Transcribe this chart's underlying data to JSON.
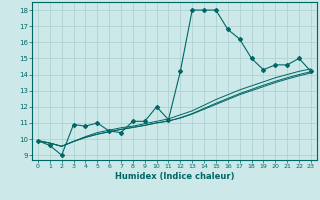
{
  "xlabel": "Humidex (Indice chaleur)",
  "xlim": [
    -0.5,
    23.5
  ],
  "ylim": [
    8.7,
    18.5
  ],
  "yticks": [
    9,
    10,
    11,
    12,
    13,
    14,
    15,
    16,
    17,
    18
  ],
  "xticks": [
    0,
    1,
    2,
    3,
    4,
    5,
    6,
    7,
    8,
    9,
    10,
    11,
    12,
    13,
    14,
    15,
    16,
    17,
    18,
    19,
    20,
    21,
    22,
    23
  ],
  "background_color": "#cce8e8",
  "grid_color": "#aacece",
  "line_color": "#006666",
  "line1": [
    9.9,
    9.6,
    9.0,
    10.9,
    10.8,
    11.0,
    10.5,
    10.4,
    11.1,
    11.1,
    12.0,
    11.2,
    14.2,
    18.0,
    18.0,
    18.0,
    16.8,
    16.2,
    15.0,
    14.3,
    14.6,
    14.6,
    15.0,
    14.2
  ],
  "line2": [
    9.9,
    9.75,
    9.55,
    9.85,
    10.15,
    10.4,
    10.55,
    10.7,
    10.8,
    10.95,
    11.1,
    11.25,
    11.5,
    11.75,
    12.1,
    12.45,
    12.75,
    13.05,
    13.3,
    13.55,
    13.8,
    14.0,
    14.2,
    14.35
  ],
  "line3": [
    9.9,
    9.75,
    9.55,
    9.85,
    10.1,
    10.3,
    10.45,
    10.6,
    10.72,
    10.85,
    11.0,
    11.12,
    11.3,
    11.55,
    11.85,
    12.15,
    12.45,
    12.75,
    13.0,
    13.25,
    13.5,
    13.72,
    13.92,
    14.1
  ],
  "line4": [
    9.9,
    9.75,
    9.55,
    9.85,
    10.1,
    10.3,
    10.45,
    10.6,
    10.72,
    10.85,
    11.0,
    11.12,
    11.32,
    11.58,
    11.9,
    12.22,
    12.52,
    12.82,
    13.08,
    13.34,
    13.58,
    13.8,
    14.0,
    14.18
  ]
}
